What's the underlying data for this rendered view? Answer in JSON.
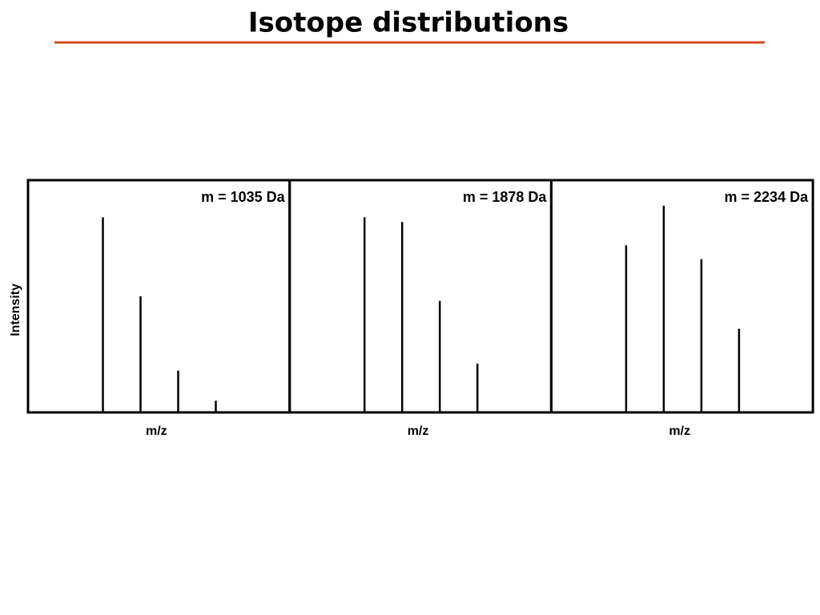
{
  "title": "Isotope distributions",
  "chart_data": [
    {
      "type": "bar",
      "annotation": "m = 1035 Da",
      "x_label": "m/z",
      "y_label": "Intensity",
      "categories": [
        null,
        null,
        null,
        null
      ],
      "values": [
        84,
        50,
        18,
        5
      ],
      "color": "#000000",
      "ylim": [
        0,
        100
      ]
    },
    {
      "type": "bar",
      "annotation": "m = 1878 Da",
      "x_label": "m/z",
      "categories": [
        null,
        null,
        null,
        null
      ],
      "values": [
        84,
        82,
        48,
        21
      ],
      "color": "#000000",
      "ylim": [
        0,
        100
      ]
    },
    {
      "type": "bar",
      "annotation": "m = 2234 Da",
      "x_label": "m/z",
      "categories": [
        null,
        null,
        null,
        null
      ],
      "values": [
        72,
        89,
        66,
        36
      ],
      "color": "#000000",
      "ylim": [
        0,
        100
      ]
    }
  ]
}
